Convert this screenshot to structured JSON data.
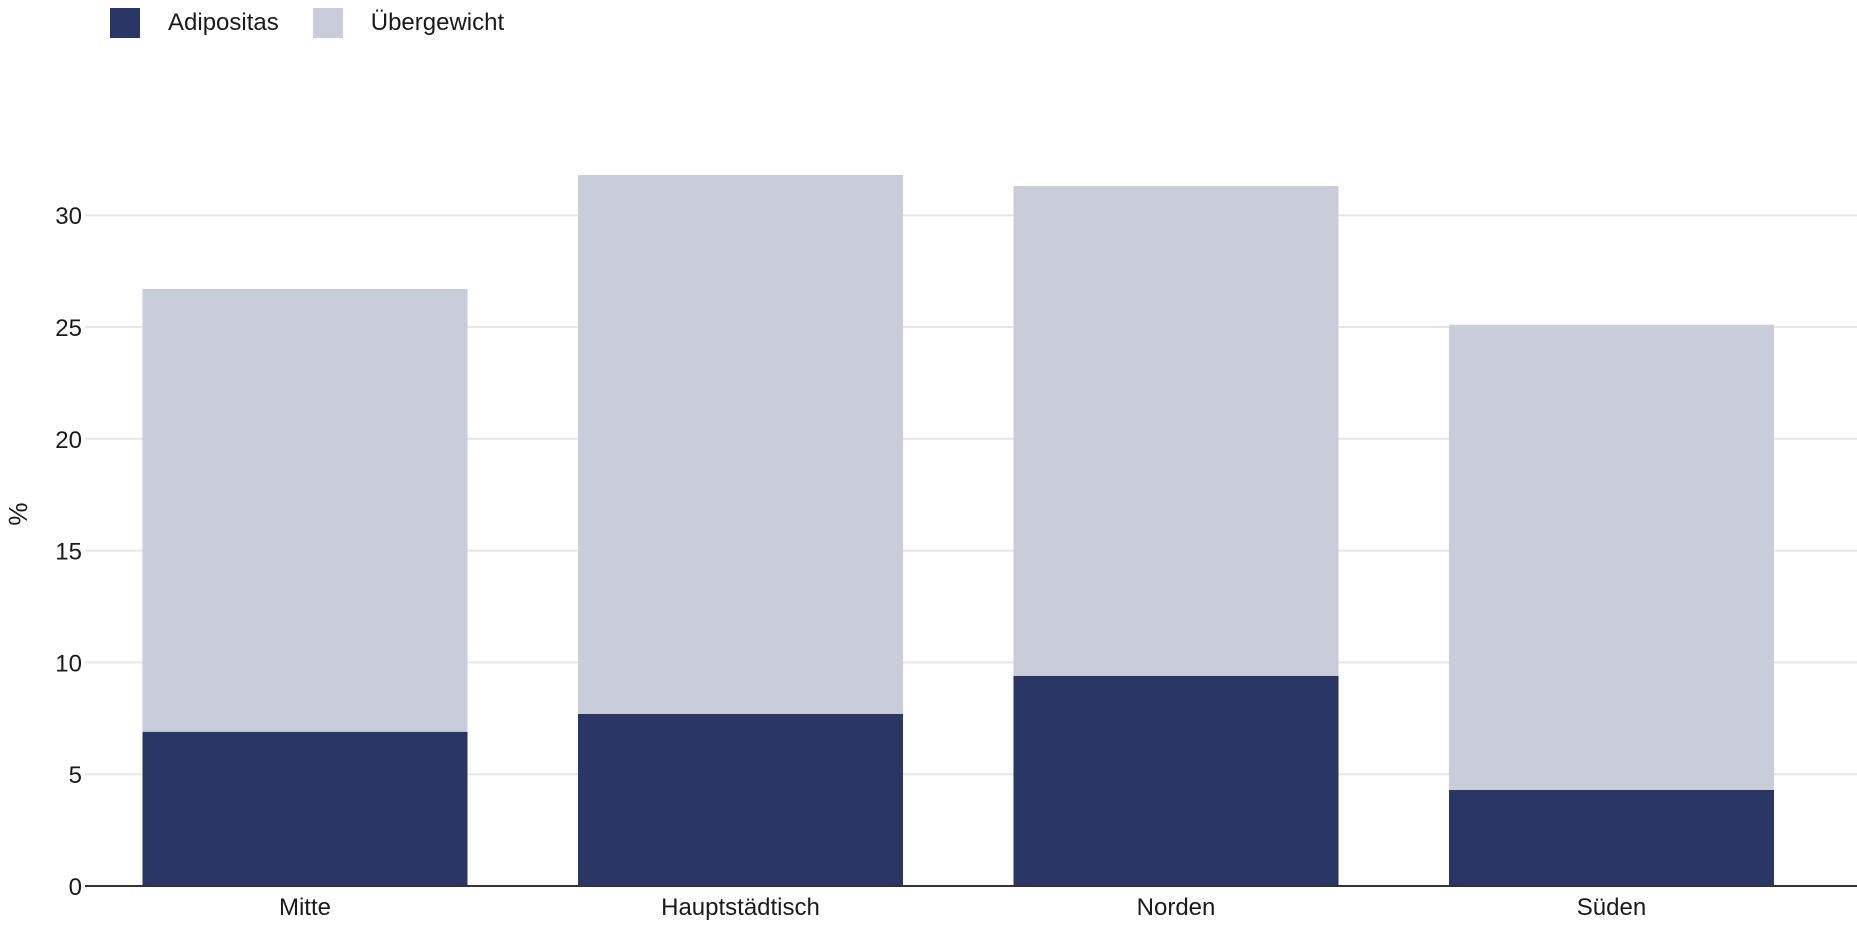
{
  "chart_data": {
    "type": "bar",
    "stacked": true,
    "categories": [
      "Mitte",
      "Hauptstädtisch",
      "Norden",
      "Süden"
    ],
    "series": [
      {
        "name": "Adipositas",
        "color": "#2a3663",
        "values": [
          6.9,
          7.7,
          9.4,
          4.3
        ]
      },
      {
        "name": "Übergewicht",
        "color": "#c9ccd9",
        "values": [
          19.8,
          24.1,
          21.9,
          20.8
        ]
      }
    ],
    "totals": [
      26.7,
      31.8,
      31.3,
      25.1
    ],
    "ylabel": "%",
    "xlabel": "",
    "ylim": [
      0,
      33
    ],
    "yticks": [
      0,
      5,
      10,
      15,
      20,
      25,
      30
    ],
    "grid": true,
    "legend_position": "top-left"
  }
}
